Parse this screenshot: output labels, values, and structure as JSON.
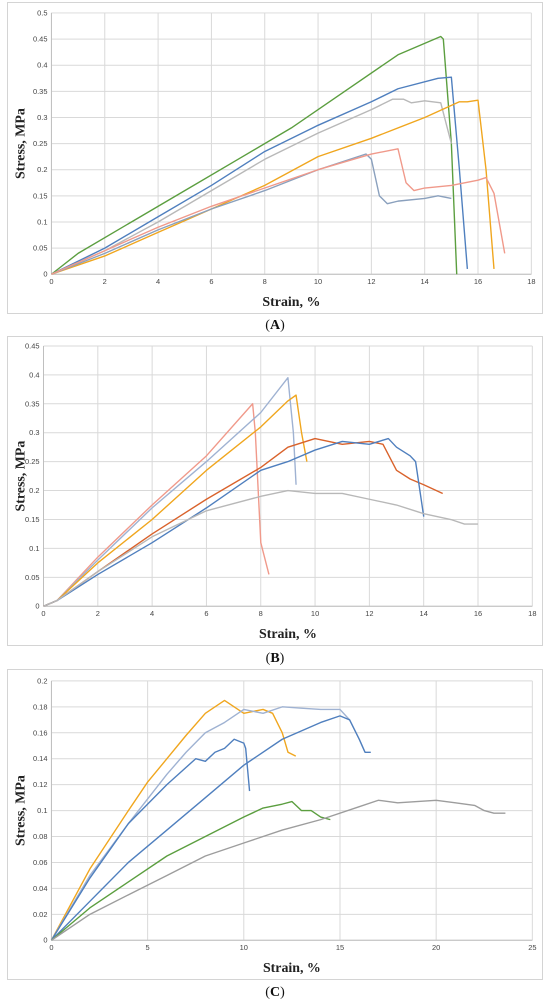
{
  "captions": [
    "A",
    "B",
    "C"
  ],
  "chart_data": [
    {
      "type": "line",
      "panel": "A",
      "xlabel": "Strain, %",
      "ylabel": "Stress, MPa",
      "xlim": [
        0,
        18
      ],
      "ylim": [
        0,
        0.5
      ],
      "xticks": [
        0,
        2,
        4,
        6,
        8,
        10,
        12,
        14,
        16,
        18
      ],
      "yticks": [
        0,
        0.05,
        0.1,
        0.15,
        0.2,
        0.25,
        0.3,
        0.35,
        0.4,
        0.45,
        0.5
      ],
      "grid": true,
      "series": [
        {
          "color": "#5b9e3f",
          "points": [
            [
              0,
              0
            ],
            [
              1,
              0.04
            ],
            [
              3,
              0.1
            ],
            [
              5,
              0.16
            ],
            [
              7,
              0.22
            ],
            [
              9,
              0.28
            ],
            [
              11,
              0.35
            ],
            [
              13,
              0.42
            ],
            [
              14.6,
              0.455
            ],
            [
              14.7,
              0.45
            ],
            [
              15,
              0.25
            ],
            [
              15.2,
              0.0
            ]
          ]
        },
        {
          "color": "#4f7fbe",
          "points": [
            [
              0,
              0
            ],
            [
              2,
              0.05
            ],
            [
              4,
              0.11
            ],
            [
              6,
              0.17
            ],
            [
              8,
              0.235
            ],
            [
              10,
              0.285
            ],
            [
              12,
              0.33
            ],
            [
              13,
              0.355
            ],
            [
              14.5,
              0.375
            ],
            [
              15,
              0.377
            ],
            [
              15.3,
              0.2
            ],
            [
              15.6,
              0.01
            ]
          ]
        },
        {
          "color": "#b8b8b8",
          "points": [
            [
              0,
              0
            ],
            [
              2,
              0.045
            ],
            [
              4,
              0.1
            ],
            [
              6,
              0.16
            ],
            [
              8,
              0.22
            ],
            [
              10,
              0.27
            ],
            [
              12,
              0.315
            ],
            [
              12.8,
              0.335
            ],
            [
              13.2,
              0.335
            ],
            [
              13.5,
              0.328
            ],
            [
              14,
              0.332
            ],
            [
              14.6,
              0.328
            ],
            [
              15,
              0.25
            ]
          ]
        },
        {
          "color": "#f0a61e",
          "points": [
            [
              0,
              0
            ],
            [
              2,
              0.035
            ],
            [
              4,
              0.08
            ],
            [
              6,
              0.125
            ],
            [
              8,
              0.17
            ],
            [
              10,
              0.225
            ],
            [
              12,
              0.26
            ],
            [
              14,
              0.3
            ],
            [
              15.3,
              0.33
            ],
            [
              15.6,
              0.33
            ],
            [
              16,
              0.333
            ],
            [
              16.3,
              0.2
            ],
            [
              16.6,
              0.01
            ]
          ]
        },
        {
          "color": "#8aa0bd",
          "points": [
            [
              0,
              0
            ],
            [
              2,
              0.04
            ],
            [
              4,
              0.085
            ],
            [
              6,
              0.125
            ],
            [
              8,
              0.16
            ],
            [
              10,
              0.2
            ],
            [
              11.8,
              0.23
            ],
            [
              12,
              0.22
            ],
            [
              12.3,
              0.15
            ],
            [
              12.6,
              0.135
            ],
            [
              13,
              0.14
            ],
            [
              14,
              0.145
            ],
            [
              14.5,
              0.15
            ],
            [
              15,
              0.145
            ]
          ]
        },
        {
          "color": "#f0998a",
          "points": [
            [
              0,
              0
            ],
            [
              2,
              0.045
            ],
            [
              4,
              0.09
            ],
            [
              6,
              0.13
            ],
            [
              8,
              0.165
            ],
            [
              10,
              0.2
            ],
            [
              12,
              0.23
            ],
            [
              13,
              0.24
            ],
            [
              13.3,
              0.175
            ],
            [
              13.6,
              0.16
            ],
            [
              14,
              0.165
            ],
            [
              15,
              0.17
            ],
            [
              16,
              0.18
            ],
            [
              16.3,
              0.185
            ],
            [
              16.6,
              0.155
            ],
            [
              17,
              0.04
            ]
          ]
        }
      ]
    },
    {
      "type": "line",
      "panel": "B",
      "xlabel": "Strain, %",
      "ylabel": "Stress, MPa",
      "xlim": [
        0,
        18
      ],
      "ylim": [
        0,
        0.45
      ],
      "xticks": [
        0,
        2,
        4,
        6,
        8,
        10,
        12,
        14,
        16,
        18
      ],
      "yticks": [
        0,
        0.05,
        0.1,
        0.15,
        0.2,
        0.25,
        0.3,
        0.35,
        0.4,
        0.45
      ],
      "grid": true,
      "series": [
        {
          "color": "#f0998a",
          "points": [
            [
              0,
              0
            ],
            [
              0.5,
              0.01
            ],
            [
              2,
              0.085
            ],
            [
              4,
              0.175
            ],
            [
              6,
              0.26
            ],
            [
              7.7,
              0.35
            ],
            [
              7.8,
              0.3
            ],
            [
              8,
              0.11
            ],
            [
              8.3,
              0.055
            ]
          ]
        },
        {
          "color": "#9fb2d2",
          "points": [
            [
              0,
              0
            ],
            [
              0.5,
              0.01
            ],
            [
              2,
              0.08
            ],
            [
              4,
              0.17
            ],
            [
              6,
              0.25
            ],
            [
              8,
              0.335
            ],
            [
              9,
              0.395
            ],
            [
              9.2,
              0.3
            ],
            [
              9.3,
              0.21
            ]
          ]
        },
        {
          "color": "#f0a61e",
          "points": [
            [
              0,
              0
            ],
            [
              0.5,
              0.01
            ],
            [
              2,
              0.075
            ],
            [
              4,
              0.15
            ],
            [
              6,
              0.235
            ],
            [
              8,
              0.31
            ],
            [
              9,
              0.355
            ],
            [
              9.3,
              0.365
            ],
            [
              9.5,
              0.3
            ],
            [
              9.7,
              0.25
            ]
          ]
        },
        {
          "color": "#d9622b",
          "points": [
            [
              0,
              0
            ],
            [
              0.5,
              0.01
            ],
            [
              2,
              0.06
            ],
            [
              4,
              0.125
            ],
            [
              6,
              0.185
            ],
            [
              8,
              0.24
            ],
            [
              9,
              0.275
            ],
            [
              10,
              0.29
            ],
            [
              11,
              0.28
            ],
            [
              12,
              0.285
            ],
            [
              12.5,
              0.28
            ],
            [
              13,
              0.235
            ],
            [
              13.5,
              0.22
            ],
            [
              14,
              0.21
            ],
            [
              14.7,
              0.195
            ]
          ]
        },
        {
          "color": "#4f7fbe",
          "points": [
            [
              0,
              0
            ],
            [
              0.5,
              0.01
            ],
            [
              2,
              0.055
            ],
            [
              4,
              0.11
            ],
            [
              6,
              0.17
            ],
            [
              8,
              0.235
            ],
            [
              9,
              0.25
            ],
            [
              10,
              0.27
            ],
            [
              11,
              0.285
            ],
            [
              12,
              0.28
            ],
            [
              12.7,
              0.29
            ],
            [
              13,
              0.275
            ],
            [
              13.5,
              0.26
            ],
            [
              13.7,
              0.25
            ],
            [
              14,
              0.155
            ]
          ]
        },
        {
          "color": "#b8b8b8",
          "points": [
            [
              0,
              0
            ],
            [
              0.5,
              0.01
            ],
            [
              2,
              0.06
            ],
            [
              4,
              0.12
            ],
            [
              6,
              0.165
            ],
            [
              8,
              0.19
            ],
            [
              9,
              0.2
            ],
            [
              10,
              0.195
            ],
            [
              11,
              0.195
            ],
            [
              12,
              0.185
            ],
            [
              13,
              0.175
            ],
            [
              14,
              0.16
            ],
            [
              15,
              0.15
            ],
            [
              15.5,
              0.142
            ],
            [
              16,
              0.142
            ]
          ]
        }
      ]
    },
    {
      "type": "line",
      "panel": "C",
      "xlabel": "Strain, %",
      "ylabel": "Stress, MPa",
      "xlim": [
        0,
        25
      ],
      "ylim": [
        0,
        0.2
      ],
      "xticks": [
        0,
        5,
        10,
        15,
        20,
        25
      ],
      "yticks": [
        0,
        0.02,
        0.04,
        0.06,
        0.08,
        0.1,
        0.12,
        0.14,
        0.16,
        0.18,
        0.2
      ],
      "grid": true,
      "series": [
        {
          "color": "#f0a61e",
          "points": [
            [
              0,
              0
            ],
            [
              2,
              0.055
            ],
            [
              4,
              0.1
            ],
            [
              5,
              0.122
            ],
            [
              6,
              0.14
            ],
            [
              7,
              0.158
            ],
            [
              8,
              0.175
            ],
            [
              9,
              0.185
            ],
            [
              10,
              0.175
            ],
            [
              11,
              0.178
            ],
            [
              11.5,
              0.175
            ],
            [
              12,
              0.16
            ],
            [
              12.3,
              0.145
            ],
            [
              12.7,
              0.142
            ]
          ]
        },
        {
          "color": "#9fb2d2",
          "points": [
            [
              0,
              0
            ],
            [
              2,
              0.05
            ],
            [
              4,
              0.09
            ],
            [
              6,
              0.128
            ],
            [
              7,
              0.145
            ],
            [
              8,
              0.16
            ],
            [
              9,
              0.168
            ],
            [
              10,
              0.178
            ],
            [
              11,
              0.175
            ],
            [
              12,
              0.18
            ],
            [
              13,
              0.179
            ],
            [
              14,
              0.178
            ],
            [
              15,
              0.178
            ],
            [
              15.5,
              0.17
            ],
            [
              16,
              0.155
            ],
            [
              16.3,
              0.145
            ]
          ]
        },
        {
          "color": "#4f7fbe",
          "points": [
            [
              0,
              0
            ],
            [
              2,
              0.048
            ],
            [
              4,
              0.09
            ],
            [
              6,
              0.12
            ],
            [
              7.5,
              0.14
            ],
            [
              8,
              0.138
            ],
            [
              8.5,
              0.145
            ],
            [
              9,
              0.148
            ],
            [
              9.5,
              0.155
            ],
            [
              10,
              0.152
            ],
            [
              10.1,
              0.148
            ],
            [
              10.3,
              0.115
            ]
          ]
        },
        {
          "color": "#4f7fbe",
          "points": [
            [
              0,
              0
            ],
            [
              2,
              0.03
            ],
            [
              4,
              0.06
            ],
            [
              6,
              0.085
            ],
            [
              8,
              0.11
            ],
            [
              10,
              0.135
            ],
            [
              12,
              0.155
            ],
            [
              14,
              0.168
            ],
            [
              15,
              0.173
            ],
            [
              15.5,
              0.17
            ],
            [
              16,
              0.155
            ],
            [
              16.3,
              0.145
            ],
            [
              16.6,
              0.145
            ]
          ]
        },
        {
          "color": "#5b9e3f",
          "points": [
            [
              0,
              0
            ],
            [
              2,
              0.025
            ],
            [
              4,
              0.045
            ],
            [
              6,
              0.065
            ],
            [
              8,
              0.08
            ],
            [
              10,
              0.095
            ],
            [
              11,
              0.102
            ],
            [
              12,
              0.105
            ],
            [
              12.5,
              0.107
            ],
            [
              13,
              0.1
            ],
            [
              13.5,
              0.1
            ],
            [
              14,
              0.095
            ],
            [
              14.5,
              0.093
            ]
          ]
        },
        {
          "color": "#9d9d9d",
          "points": [
            [
              0,
              0
            ],
            [
              2,
              0.02
            ],
            [
              4,
              0.035
            ],
            [
              6,
              0.05
            ],
            [
              8,
              0.065
            ],
            [
              10,
              0.075
            ],
            [
              12,
              0.085
            ],
            [
              14,
              0.093
            ],
            [
              16,
              0.103
            ],
            [
              17,
              0.108
            ],
            [
              18,
              0.106
            ],
            [
              19,
              0.107
            ],
            [
              20,
              0.108
            ],
            [
              21,
              0.106
            ],
            [
              22,
              0.104
            ],
            [
              22.5,
              0.1
            ],
            [
              23,
              0.098
            ],
            [
              23.6,
              0.098
            ]
          ]
        }
      ]
    }
  ]
}
